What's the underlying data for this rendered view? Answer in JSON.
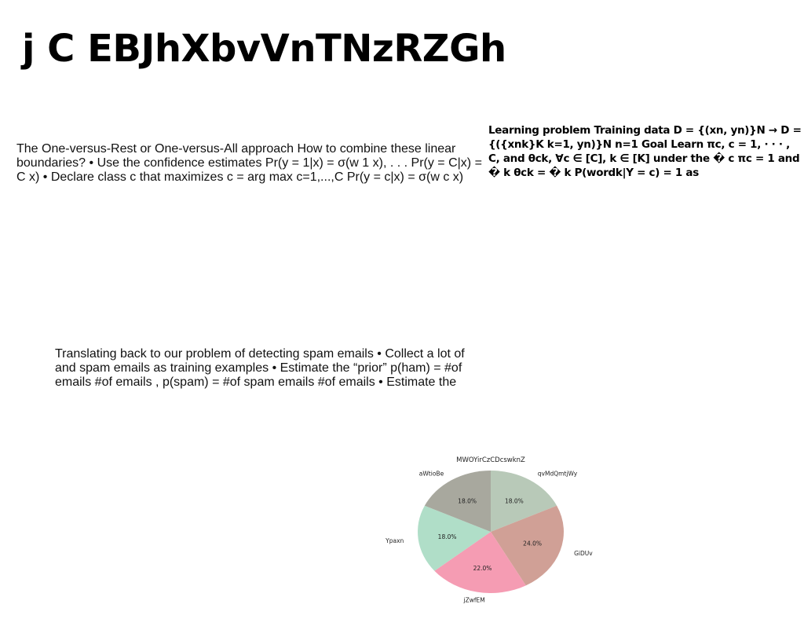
{
  "title": "j C EBJhXbvVnTNzRZGh",
  "paragraphs": {
    "one_vs_rest": "The One-versus-Rest or One-versus-All approach How to combine these linear boundaries? • Use the confidence estimates Pr(y = 1|x) = σ(w⁡ 1 x), . . . Pr(y = C|x) = C x) • Declare class c⁡ that maximizes c⁡ = arg max c=1,...,C Pr(y = c|x) = σ(w⁡ c x)",
    "learning_problem": "Learning problem Training data D = {(xn, yn)}N → D = {({xnk}K k=1, yn)}N n=1 Goal Learn πc, c = 1, · · · , C, and θck, ∀c ∈ [C], k ∈ [K] under the � c πc = 1 and � k θck = � k P(wordk|Y = c) = 1 as",
    "spam": "Translating back to our problem of detecting spam emails • Collect a lot of and spam emails as training examples • Estimate the “prior” p(ham) = #of emails #of emails , p(spam) = #of spam emails #of emails • Estimate the"
  },
  "chart_data": {
    "type": "pie",
    "title": "MWOYirCzCDcswknZ",
    "start_angle_deg": 90,
    "direction": "clockwise",
    "slices": [
      {
        "label": "qvMdQmtjWy",
        "value": 18.0,
        "display": "18.0%",
        "color": "#b8c9b8"
      },
      {
        "label": "GiDUv",
        "value": 24.0,
        "display": "24.0%",
        "color": "#d0a096"
      },
      {
        "label": "jZwfEM",
        "value": 22.0,
        "display": "22.0%",
        "color": "#f59cb3"
      },
      {
        "label": "Ypaxn",
        "value": 18.0,
        "display": "18.0%",
        "color": "#b0dec8"
      },
      {
        "label": "aWtioBe",
        "value": 18.0,
        "display": "18.0%",
        "color": "#a8a89e"
      }
    ]
  }
}
